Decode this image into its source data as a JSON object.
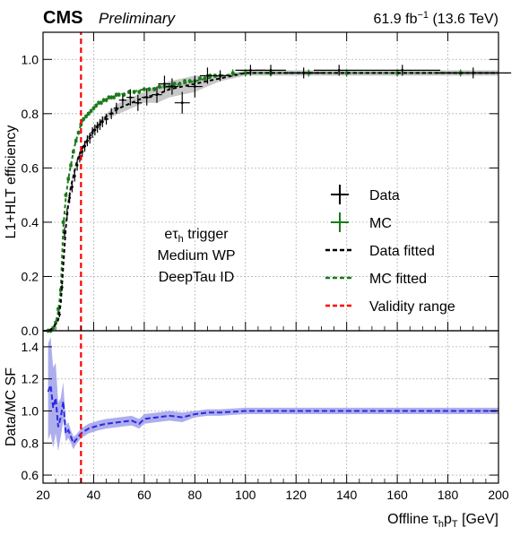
{
  "header": {
    "experiment": "CMS",
    "status": "Preliminary",
    "lumi": "61.9 fb",
    "lumi_exp": "−1",
    "energy": " (13.6 TeV)"
  },
  "annotation": {
    "line1_main": "eτ",
    "line1_sub": "h",
    "line1_rest": " trigger",
    "line2": "Medium WP",
    "line3": "DeepTau ID"
  },
  "colors": {
    "data": "#000000",
    "mc": "#1a7a1a",
    "sf": "#2a2ae6",
    "sf_band": "#9a9ae8",
    "data_band": "#b0b0b0",
    "validity": "#ff0000",
    "grid": "#b4b4b4"
  },
  "chart_data": [
    {
      "type": "line",
      "panel": "upper",
      "title": "",
      "xlabel": "",
      "ylabel": "L1+HLT efficiency",
      "xlim": [
        20,
        200
      ],
      "ylim": [
        0,
        1.1
      ],
      "xscale": "linear",
      "grid": true,
      "legend_position": "middle-right",
      "xticks": [
        20,
        40,
        60,
        80,
        100,
        120,
        140,
        160,
        180,
        200
      ],
      "yticks": [
        0,
        0.2,
        0.4,
        0.6,
        0.8,
        1.0
      ],
      "ytick_labels": [
        "0.0",
        "0.2",
        "0.4",
        "0.6",
        "0.8",
        "1.0"
      ],
      "validity_range_x": 35,
      "series": [
        {
          "name": "Data",
          "kind": "points",
          "x": [
            26.5,
            27.5,
            28.5,
            29.5,
            30.5,
            31.5,
            32.5,
            33.5,
            34.5,
            35.5,
            36.5,
            37.5,
            38.5,
            39.5,
            40.5,
            41.5,
            42.5,
            43.5,
            45,
            47,
            49,
            51.5,
            54.5,
            57.5,
            61,
            65,
            68,
            71,
            75,
            80,
            85,
            90,
            102,
            110,
            123,
            137,
            162,
            190
          ],
          "y": [
            0.06,
            0.16,
            0.36,
            0.43,
            0.49,
            0.53,
            0.57,
            0.61,
            0.64,
            0.66,
            0.68,
            0.7,
            0.71,
            0.73,
            0.74,
            0.75,
            0.76,
            0.77,
            0.78,
            0.8,
            0.82,
            0.85,
            0.86,
            0.84,
            0.86,
            0.87,
            0.91,
            0.9,
            0.84,
            0.9,
            0.94,
            0.94,
            0.96,
            0.96,
            0.95,
            0.96,
            0.96,
            0.95
          ],
          "xerr": [
            0.5,
            0.5,
            0.5,
            0.5,
            0.5,
            0.5,
            0.5,
            0.5,
            0.5,
            0.5,
            0.5,
            0.5,
            0.5,
            0.5,
            0.5,
            0.5,
            0.5,
            0.5,
            1,
            1,
            1,
            1.5,
            1.5,
            1.5,
            2,
            2,
            2.5,
            2.5,
            3,
            3,
            3,
            4,
            6,
            6,
            8,
            10,
            15,
            15
          ],
          "yerr": [
            0.01,
            0.01,
            0.02,
            0.02,
            0.02,
            0.02,
            0.02,
            0.02,
            0.02,
            0.02,
            0.02,
            0.02,
            0.02,
            0.02,
            0.02,
            0.02,
            0.02,
            0.02,
            0.02,
            0.02,
            0.02,
            0.02,
            0.03,
            0.03,
            0.03,
            0.03,
            0.03,
            0.03,
            0.04,
            0.04,
            0.03,
            0.02,
            0.02,
            0.02,
            0.02,
            0.02,
            0.02,
            0.02
          ]
        },
        {
          "name": "MC",
          "kind": "points",
          "x": [
            22,
            23,
            24,
            25,
            26,
            27,
            28,
            29,
            30,
            31,
            32,
            33,
            34,
            35,
            36,
            37,
            38,
            39,
            40,
            41,
            42,
            43,
            44,
            45,
            46,
            47,
            48,
            49,
            50,
            52,
            54,
            56,
            58,
            60,
            62,
            64,
            66,
            68,
            70,
            72,
            74,
            76,
            78,
            80,
            82,
            84,
            86,
            88,
            90,
            95,
            100,
            110,
            125,
            140,
            160,
            185
          ],
          "y": [
            0.0,
            0.0,
            0.01,
            0.03,
            0.08,
            0.15,
            0.4,
            0.5,
            0.56,
            0.61,
            0.66,
            0.7,
            0.73,
            0.76,
            0.78,
            0.79,
            0.8,
            0.81,
            0.82,
            0.83,
            0.84,
            0.84,
            0.85,
            0.85,
            0.86,
            0.86,
            0.86,
            0.87,
            0.87,
            0.87,
            0.88,
            0.88,
            0.88,
            0.89,
            0.89,
            0.89,
            0.9,
            0.9,
            0.9,
            0.91,
            0.91,
            0.92,
            0.92,
            0.92,
            0.93,
            0.93,
            0.94,
            0.94,
            0.94,
            0.95,
            0.95,
            0.95,
            0.95,
            0.95,
            0.95,
            0.95
          ],
          "yerr": [
            0.005,
            0.005,
            0.005,
            0.005,
            0.005,
            0.005,
            0.005,
            0.005,
            0.005,
            0.005,
            0.005,
            0.005,
            0.005,
            0.005,
            0.005,
            0.005,
            0.005,
            0.005,
            0.005,
            0.005,
            0.005,
            0.005,
            0.005,
            0.005,
            0.005,
            0.005,
            0.005,
            0.005,
            0.005,
            0.005,
            0.005,
            0.005,
            0.005,
            0.005,
            0.005,
            0.005,
            0.005,
            0.005,
            0.005,
            0.005,
            0.005,
            0.005,
            0.005,
            0.005,
            0.005,
            0.005,
            0.005,
            0.005,
            0.005,
            0.01,
            0.01,
            0.01,
            0.01,
            0.01,
            0.01,
            0.01
          ]
        },
        {
          "name": "Data fitted",
          "kind": "dashed-line",
          "x": [
            20,
            22,
            24,
            26,
            27,
            28,
            29,
            30,
            31,
            32,
            33,
            34,
            35,
            36,
            38,
            40,
            42,
            45,
            50,
            55,
            60,
            65,
            70,
            75,
            80,
            85,
            90,
            95,
            100,
            120,
            140,
            160,
            180,
            200
          ],
          "y": [
            0.0,
            0.0,
            0.01,
            0.04,
            0.1,
            0.24,
            0.38,
            0.47,
            0.53,
            0.57,
            0.61,
            0.64,
            0.66,
            0.68,
            0.71,
            0.74,
            0.76,
            0.79,
            0.82,
            0.84,
            0.86,
            0.87,
            0.89,
            0.9,
            0.91,
            0.92,
            0.93,
            0.94,
            0.95,
            0.95,
            0.95,
            0.95,
            0.95,
            0.95
          ],
          "band_halfwidth": [
            0,
            0,
            0,
            0.005,
            0.005,
            0.01,
            0.01,
            0.01,
            0.01,
            0.01,
            0.01,
            0.01,
            0.01,
            0.01,
            0.01,
            0.01,
            0.01,
            0.01,
            0.02,
            0.02,
            0.02,
            0.03,
            0.03,
            0.03,
            0.03,
            0.02,
            0.01,
            0.01,
            0.01,
            0.01,
            0.01,
            0.01,
            0.01,
            0.01
          ]
        },
        {
          "name": "MC fitted",
          "kind": "dashed-line",
          "x": [
            20,
            22,
            24,
            25,
            26,
            27,
            28,
            29,
            30,
            31,
            32,
            33,
            34,
            35,
            36,
            38,
            40,
            42,
            45,
            50,
            55,
            60,
            70,
            80,
            90,
            100,
            120,
            140,
            160,
            180,
            200
          ],
          "y": [
            0.0,
            0.0,
            0.01,
            0.03,
            0.07,
            0.15,
            0.38,
            0.49,
            0.56,
            0.61,
            0.66,
            0.7,
            0.73,
            0.76,
            0.78,
            0.8,
            0.82,
            0.84,
            0.85,
            0.87,
            0.88,
            0.89,
            0.9,
            0.92,
            0.94,
            0.95,
            0.95,
            0.95,
            0.95,
            0.95,
            0.95
          ]
        },
        {
          "name": "Validity range",
          "kind": "vertical-dashed-line",
          "x": [
            35,
            35
          ],
          "y": [
            0,
            1.1
          ]
        }
      ]
    },
    {
      "type": "line",
      "panel": "lower",
      "title": "",
      "xlabel": "Offline τhpT [GeV]",
      "xlabel_parts": [
        "Offline τ",
        "h",
        "p",
        "T",
        " [GeV]"
      ],
      "ylabel": "Data/MC SF",
      "xlim": [
        20,
        200
      ],
      "ylim": [
        0.55,
        1.5
      ],
      "grid": true,
      "xticks": [
        20,
        40,
        60,
        80,
        100,
        120,
        140,
        160,
        180,
        200
      ],
      "yticks": [
        0.6,
        0.8,
        1.0,
        1.2,
        1.4
      ],
      "series": [
        {
          "name": "",
          "kind": "dashed-line-with-band",
          "x": [
            22,
            23,
            24,
            25,
            26,
            27,
            28,
            29,
            30,
            31,
            32,
            33,
            34,
            35,
            36,
            38,
            40,
            42,
            45,
            50,
            55,
            58,
            60,
            65,
            70,
            75,
            80,
            85,
            90,
            100,
            110,
            120,
            140,
            160,
            180,
            200
          ],
          "y": [
            1.12,
            1.16,
            1.02,
            1.08,
            0.9,
            0.96,
            1.06,
            0.86,
            0.88,
            0.84,
            0.8,
            0.82,
            0.84,
            0.86,
            0.87,
            0.89,
            0.9,
            0.91,
            0.92,
            0.93,
            0.94,
            0.92,
            0.95,
            0.96,
            0.97,
            0.96,
            0.98,
            0.99,
            0.99,
            1.0,
            1.0,
            1.0,
            1.0,
            1.0,
            1.0,
            1.0
          ],
          "band_halfwidth": [
            0.3,
            0.3,
            0.25,
            0.22,
            0.15,
            0.12,
            0.12,
            0.05,
            0.05,
            0.04,
            0.04,
            0.03,
            0.03,
            0.03,
            0.03,
            0.03,
            0.03,
            0.03,
            0.03,
            0.03,
            0.03,
            0.03,
            0.03,
            0.03,
            0.03,
            0.03,
            0.02,
            0.02,
            0.02,
            0.02,
            0.02,
            0.02,
            0.02,
            0.02,
            0.02,
            0.02
          ]
        },
        {
          "name": "Validity range",
          "kind": "vertical-dashed-line",
          "x": [
            35,
            35
          ],
          "y": [
            0.55,
            1.5
          ]
        }
      ]
    }
  ]
}
